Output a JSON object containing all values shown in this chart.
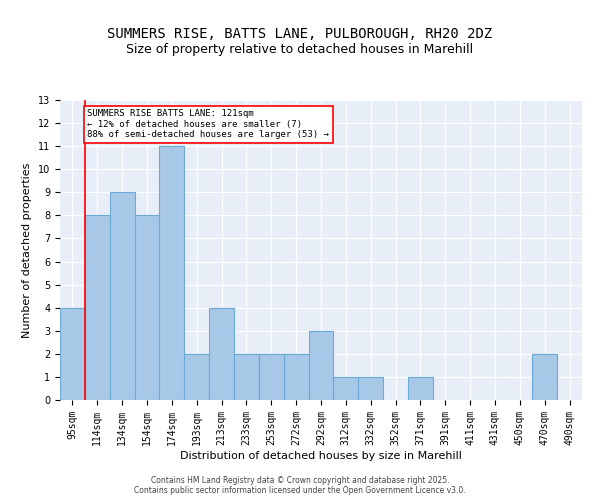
{
  "title1": "SUMMERS RISE, BATTS LANE, PULBOROUGH, RH20 2DZ",
  "title2": "Size of property relative to detached houses in Marehill",
  "xlabel": "Distribution of detached houses by size in Marehill",
  "ylabel": "Number of detached properties",
  "bins": [
    "95sqm",
    "114sqm",
    "134sqm",
    "154sqm",
    "174sqm",
    "193sqm",
    "213sqm",
    "233sqm",
    "253sqm",
    "272sqm",
    "292sqm",
    "312sqm",
    "332sqm",
    "352sqm",
    "371sqm",
    "391sqm",
    "411sqm",
    "431sqm",
    "450sqm",
    "470sqm",
    "490sqm"
  ],
  "values": [
    4,
    8,
    9,
    8,
    11,
    2,
    4,
    2,
    2,
    2,
    3,
    1,
    1,
    0,
    1,
    0,
    0,
    0,
    0,
    2,
    0
  ],
  "bar_color": "#a8c8e8",
  "bar_edge_color": "#6aaad4",
  "red_line_x": 0.5,
  "annotation_text": "SUMMERS RISE BATTS LANE: 121sqm\n← 12% of detached houses are smaller (7)\n88% of semi-detached houses are larger (53) →",
  "annotation_box_color": "white",
  "annotation_box_edge_color": "red",
  "ylim": [
    0,
    13
  ],
  "yticks": [
    0,
    1,
    2,
    3,
    4,
    5,
    6,
    7,
    8,
    9,
    10,
    11,
    12,
    13
  ],
  "background_color": "#e8eef8",
  "footer": "Contains HM Land Registry data © Crown copyright and database right 2025.\nContains public sector information licensed under the Open Government Licence v3.0.",
  "title_fontsize": 10,
  "subtitle_fontsize": 9,
  "axis_label_fontsize": 8,
  "tick_fontsize": 7
}
